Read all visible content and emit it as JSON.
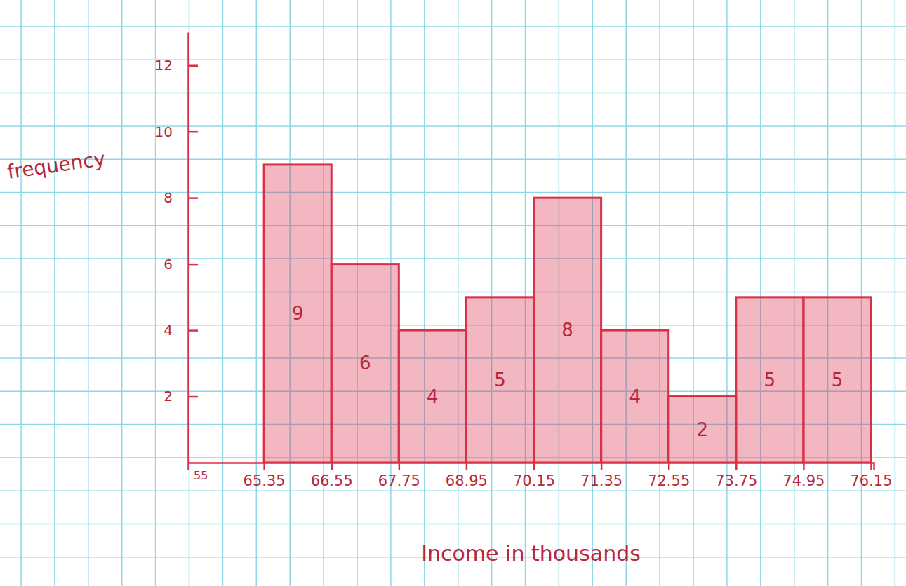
{
  "chart_data": {
    "type": "histogram",
    "x_label": "Income in thousands",
    "y_label": "frequency",
    "bins": [
      65.35,
      66.55,
      67.75,
      68.95,
      70.15,
      71.35,
      72.55,
      73.75,
      74.95,
      76.15
    ],
    "values": [
      9,
      6,
      4,
      5,
      8,
      4,
      2,
      5,
      5
    ],
    "xlim": [
      64,
      76.2
    ],
    "xticks": [
      65.35,
      66.55,
      67.75,
      68.95,
      70.15,
      71.35,
      72.55,
      73.75,
      74.95,
      76.15
    ],
    "ylim": [
      0,
      13
    ],
    "yticks": [
      2,
      4,
      6,
      8,
      10,
      12
    ],
    "data_labels": true,
    "grid": false,
    "color": "#d9304a",
    "annotations": [
      "55"
    ]
  }
}
